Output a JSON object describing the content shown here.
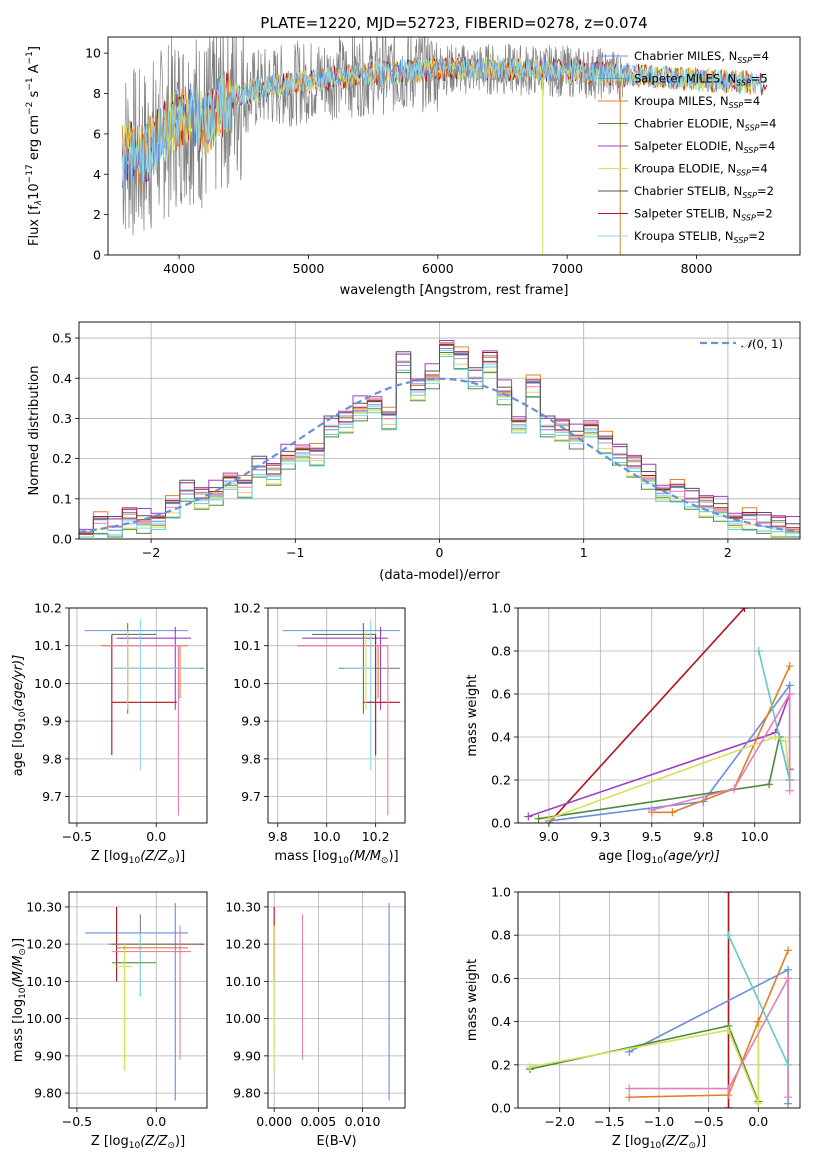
{
  "figure": {
    "colors": {
      "cm": "#6b8fd9",
      "sm": "#4aa8d6",
      "km": "#e0802a",
      "ce": "#4d8a3c",
      "se": "#9b3fbf",
      "ke": "#d7e05a",
      "cs": "#555555",
      "ss": "#b0121b",
      "ks": "#8fd6e3",
      "pink": "#e87fb8",
      "teal": "#63c9c9",
      "gray": "#808080",
      "gauss": "#6b8fd9"
    }
  },
  "chart_data": [
    {
      "id": "spectrum",
      "type": "line",
      "title": "PLATE=1220, MJD=52723, FIBERID=0278, z=0.074",
      "xlabel": "wavelength [Angstrom, rest frame]",
      "ylabel_parts": [
        "Flux [f",
        "λ",
        "10",
        "−17",
        " erg cm",
        "−2",
        " s",
        "−1",
        " A",
        "−1",
        "]"
      ],
      "xlim": [
        3450,
        8800
      ],
      "ylim": [
        0,
        10.8
      ],
      "xticks": [
        4000,
        5000,
        6000,
        7000,
        8000
      ],
      "yticks": [
        0,
        2,
        4,
        6,
        8,
        10
      ],
      "envelope_x": [
        3500,
        3600,
        3700,
        3800,
        3900,
        4000,
        4100,
        4200,
        4300,
        4400,
        4600,
        4800,
        5000,
        5200,
        5500,
        6000,
        6500,
        7000,
        7500,
        8000,
        8500
      ],
      "envelope_y": [
        4.5,
        5.2,
        4.8,
        5.5,
        6.2,
        6.8,
        7.0,
        6.4,
        7.2,
        7.8,
        8.2,
        8.4,
        8.6,
        8.8,
        9.0,
        9.2,
        9.2,
        9.1,
        8.9,
        8.7,
        8.5
      ],
      "legend": [
        {
          "label": "Chabrier MILES, N",
          "sub": "SSP",
          "tail": "=4",
          "color": "cm"
        },
        {
          "label": "Salpeter MILES, N",
          "sub": "SSP",
          "tail": "=5",
          "color": "sm"
        },
        {
          "label": "Kroupa MILES, N",
          "sub": "SSP",
          "tail": "=4",
          "color": "km"
        },
        {
          "label": "Chabrier ELODIE, N",
          "sub": "SSP",
          "tail": "=4",
          "color": "ce"
        },
        {
          "label": "Salpeter ELODIE, N",
          "sub": "SSP",
          "tail": "=4",
          "color": "se"
        },
        {
          "label": "Kroupa ELODIE, N",
          "sub": "SSP",
          "tail": "=4",
          "color": "ke"
        },
        {
          "label": "Chabrier STELIB, N",
          "sub": "SSP",
          "tail": "=2",
          "color": "cs"
        },
        {
          "label": "Salpeter STELIB, N",
          "sub": "SSP",
          "tail": "=2",
          "color": "ss"
        },
        {
          "label": "Kroupa STELIB, N",
          "sub": "SSP",
          "tail": "=2",
          "color": "ks"
        }
      ]
    },
    {
      "id": "residuals",
      "type": "bar",
      "xlabel": "(data-model)/error",
      "ylabel": "Normed distribution",
      "xlim": [
        -2.5,
        2.5
      ],
      "ylim": [
        0,
        0.54
      ],
      "xticks": [
        -2,
        -1,
        0,
        1,
        2
      ],
      "yticks": [
        0.0,
        0.1,
        0.2,
        0.3,
        0.4,
        0.5
      ],
      "legend": {
        "prefix": "𝒩",
        "rest": "(0, 1)"
      },
      "bin_width": 0.1,
      "bins_x": [
        -2.5,
        -2.4,
        -2.3,
        -2.2,
        -2.1,
        -2.0,
        -1.9,
        -1.8,
        -1.7,
        -1.6,
        -1.5,
        -1.4,
        -1.3,
        -1.2,
        -1.1,
        -1.0,
        -0.9,
        -0.8,
        -0.7,
        -0.6,
        -0.5,
        -0.4,
        -0.3,
        -0.2,
        -0.1,
        0.0,
        0.1,
        0.2,
        0.3,
        0.4,
        0.5,
        0.6,
        0.7,
        0.8,
        0.9,
        1.0,
        1.1,
        1.2,
        1.3,
        1.4,
        1.5,
        1.6,
        1.7,
        1.8,
        1.9,
        2.0,
        2.1,
        2.2,
        2.3,
        2.4
      ],
      "hist_y": [
        0.02,
        0.04,
        0.03,
        0.05,
        0.04,
        0.06,
        0.08,
        0.12,
        0.1,
        0.11,
        0.16,
        0.13,
        0.18,
        0.16,
        0.2,
        0.23,
        0.21,
        0.28,
        0.29,
        0.32,
        0.35,
        0.3,
        0.44,
        0.37,
        0.4,
        0.49,
        0.45,
        0.4,
        0.44,
        0.36,
        0.3,
        0.38,
        0.28,
        0.27,
        0.25,
        0.29,
        0.24,
        0.21,
        0.18,
        0.15,
        0.13,
        0.12,
        0.1,
        0.08,
        0.07,
        0.06,
        0.05,
        0.04,
        0.03,
        0.02
      ],
      "offsets": [
        0.0,
        0.012,
        -0.01,
        0.02,
        -0.015,
        0.008,
        -0.005,
        0.015,
        -0.02,
        0.01
      ]
    },
    {
      "id": "age_vs_z",
      "type": "scatter",
      "xlabel": "Z [log",
      "xlabel_sub": "10",
      "xlabel_tail": "(Z/Z",
      "xlabel_sun": "⊙",
      "xlabel_end": ")]",
      "ylabel": "age  [log",
      "ylabel_sub": "10",
      "ylabel_tail": "(age/yr)]",
      "xlim": [
        -0.55,
        0.32
      ],
      "ylim": [
        9.63,
        10.2
      ],
      "xticks": [
        -0.5,
        0.0
      ],
      "yticks": [
        9.7,
        9.8,
        9.9,
        10.0,
        10.1,
        10.2
      ],
      "crosses": [
        {
          "x": -0.1,
          "y": 10.14,
          "xe": [
            -0.45,
            0.2
          ],
          "ye": [
            10.14,
            10.14
          ],
          "color": "cm"
        },
        {
          "x": 0.12,
          "y": 10.12,
          "xe": [
            -0.25,
            0.22
          ],
          "ye": [
            9.93,
            10.15
          ],
          "color": "se"
        },
        {
          "x": -0.18,
          "y": 10.13,
          "xe": [
            -0.28,
            0.0
          ],
          "ye": [
            9.92,
            10.16
          ],
          "color": "ce"
        },
        {
          "x": 0.15,
          "y": 10.1,
          "xe": [
            -0.35,
            0.2
          ],
          "ye": [
            9.96,
            10.1
          ],
          "color": "km"
        },
        {
          "x": 0.0,
          "y": 10.04,
          "xe": [
            -0.27,
            0.3
          ],
          "ye": [
            10.04,
            10.04
          ],
          "color": "gray"
        },
        {
          "x": -0.1,
          "y": 10.04,
          "xe": [
            -0.27,
            0.28
          ],
          "ye": [
            9.77,
            10.17
          ],
          "color": "ks"
        },
        {
          "x": -0.28,
          "y": 9.95,
          "xe": [
            -0.28,
            0.13
          ],
          "ye": [
            9.81,
            10.13
          ],
          "color": "ss"
        },
        {
          "x": 0.14,
          "y": 10.1,
          "xe": [
            -0.3,
            0.18
          ],
          "ye": [
            9.65,
            10.1
          ],
          "color": "pink"
        },
        {
          "x": -0.18,
          "y": 10.1,
          "xe": [
            -0.18,
            -0.18
          ],
          "ye": [
            9.93,
            10.14
          ],
          "color": "ke"
        }
      ]
    },
    {
      "id": "age_vs_mass",
      "type": "scatter",
      "xlabel": "mass [log",
      "xlabel_sub": "10",
      "xlabel_tail": "(M/M",
      "xlabel_sun": "⊙",
      "xlabel_end": ")]",
      "xlim": [
        9.76,
        10.32
      ],
      "ylim": [
        9.63,
        10.2
      ],
      "xticks": [
        9.8,
        10.0,
        10.2
      ],
      "yticks": [
        9.7,
        9.8,
        9.9,
        10.0,
        10.1,
        10.2
      ],
      "crosses": [
        {
          "x": 10.2,
          "y": 10.14,
          "xe": [
            9.82,
            10.3
          ],
          "ye": [
            10.14,
            10.14
          ],
          "color": "cm"
        },
        {
          "x": 10.22,
          "y": 10.12,
          "xe": [
            9.9,
            10.25
          ],
          "ye": [
            9.93,
            10.15
          ],
          "color": "se"
        },
        {
          "x": 10.15,
          "y": 10.13,
          "xe": [
            9.94,
            10.2
          ],
          "ye": [
            9.92,
            10.16
          ],
          "color": "ce"
        },
        {
          "x": 10.21,
          "y": 10.1,
          "xe": [
            9.88,
            10.25
          ],
          "ye": [
            9.96,
            10.1
          ],
          "color": "km"
        },
        {
          "x": 10.12,
          "y": 10.04,
          "xe": [
            10.05,
            10.3
          ],
          "ye": [
            10.04,
            10.04
          ],
          "color": "gray"
        },
        {
          "x": 10.18,
          "y": 10.04,
          "xe": [
            10.07,
            10.2
          ],
          "ye": [
            9.77,
            10.17
          ],
          "color": "ks"
        },
        {
          "x": 10.2,
          "y": 9.95,
          "xe": [
            10.15,
            10.3
          ],
          "ye": [
            9.81,
            10.13
          ],
          "color": "ss"
        },
        {
          "x": 10.25,
          "y": 10.1,
          "xe": [
            9.88,
            10.25
          ],
          "ye": [
            9.65,
            10.1
          ],
          "color": "pink"
        },
        {
          "x": 10.16,
          "y": 10.1,
          "xe": [
            10.16,
            10.16
          ],
          "ye": [
            9.93,
            10.14
          ],
          "color": "ke"
        }
      ]
    },
    {
      "id": "weight_vs_age",
      "type": "line",
      "xlabel": "age  [log",
      "xlabel_sub": "10",
      "xlabel_tail": "(age/yr)]",
      "ylabel": "mass weight",
      "xlim": [
        8.85,
        10.22
      ],
      "ylim": [
        0,
        1
      ],
      "xticks": [
        9.0,
        9.25,
        9.5,
        9.75,
        10.0
      ],
      "yticks": [
        0.0,
        0.2,
        0.4,
        0.6,
        0.8,
        1.0
      ],
      "series": [
        {
          "color": "ss",
          "x": [
            9.0,
            9.95
          ],
          "y": [
            0.0,
            1.0
          ]
        },
        {
          "color": "se",
          "x": [
            8.9,
            10.1,
            10.17,
            10.17
          ],
          "y": [
            0.03,
            0.42,
            0.6,
            0.25
          ]
        },
        {
          "color": "cm",
          "x": [
            9.0,
            9.75,
            10.17,
            10.17
          ],
          "y": [
            0.01,
            0.1,
            0.64,
            0.2
          ]
        },
        {
          "color": "km",
          "x": [
            9.5,
            9.6,
            9.9,
            10.17
          ],
          "y": [
            0.05,
            0.05,
            0.16,
            0.73
          ]
        },
        {
          "color": "ce",
          "x": [
            8.95,
            10.07,
            10.12,
            10.17
          ],
          "y": [
            0.02,
            0.18,
            0.4,
            0.2
          ]
        },
        {
          "color": "ke",
          "x": [
            9.0,
            10.1,
            10.15,
            10.17
          ],
          "y": [
            0.02,
            0.4,
            0.38,
            0.2
          ]
        },
        {
          "color": "teal",
          "x": [
            10.02,
            10.17
          ],
          "y": [
            0.8,
            0.2
          ]
        },
        {
          "color": "pink",
          "x": [
            9.5,
            9.9,
            10.17,
            10.17
          ],
          "y": [
            0.06,
            0.16,
            0.6,
            0.15
          ]
        }
      ]
    },
    {
      "id": "mass_vs_z",
      "type": "scatter",
      "xlabel": "Z [log",
      "xlabel_sub": "10",
      "xlabel_tail": "(Z/Z",
      "xlabel_sun": "⊙",
      "xlabel_end": ")]",
      "ylabel": "mass [log",
      "ylabel_sub": "10",
      "ylabel_tail": "(M/M",
      "ylabel_sun": "⊙",
      "ylabel_end": ")]",
      "xlim": [
        -0.55,
        0.32
      ],
      "ylim": [
        9.76,
        10.34
      ],
      "xticks": [
        -0.5,
        0.0
      ],
      "yticks": [
        9.8,
        9.9,
        10.0,
        10.1,
        10.2,
        10.3
      ],
      "crosses": [
        {
          "x": 0.12,
          "y": 10.23,
          "xe": [
            -0.45,
            0.2
          ],
          "ye": [
            9.78,
            10.31
          ],
          "color": "cm"
        },
        {
          "x": -0.25,
          "y": 10.2,
          "xe": [
            -0.28,
            0.3
          ],
          "ye": [
            10.1,
            10.3
          ],
          "color": "ss"
        },
        {
          "x": -0.1,
          "y": 10.2,
          "xe": [
            -0.3,
            0.28
          ],
          "ye": [
            10.06,
            10.28
          ],
          "color": "gray"
        },
        {
          "x": 0.15,
          "y": 10.18,
          "xe": [
            -0.28,
            0.22
          ],
          "ye": [
            9.89,
            10.25
          ],
          "color": "pink"
        },
        {
          "x": -0.1,
          "y": 10.15,
          "xe": [
            -0.25,
            -0.1
          ],
          "ye": [
            10.06,
            10.23
          ],
          "color": "ks"
        },
        {
          "x": -0.2,
          "y": 10.15,
          "xe": [
            -0.28,
            0.0
          ],
          "ye": [
            9.86,
            10.2
          ],
          "color": "ce"
        },
        {
          "x": -0.2,
          "y": 10.14,
          "xe": [
            -0.25,
            -0.15
          ],
          "ye": [
            9.86,
            10.2
          ],
          "color": "ke"
        },
        {
          "x": 0.0,
          "y": 10.19,
          "xe": [
            -0.25,
            0.2
          ],
          "ye": [
            10.19,
            10.19
          ],
          "color": "km"
        }
      ]
    },
    {
      "id": "mass_vs_ebv",
      "type": "scatter",
      "xlabel": "E(B-V)",
      "xlim": [
        -0.0007,
        0.0148
      ],
      "ylim": [
        9.76,
        10.34
      ],
      "xticks": [
        0.0,
        0.005,
        0.01
      ],
      "xtick_labels": [
        "0.000",
        "0.005",
        "0.010"
      ],
      "yticks": [
        9.8,
        9.9,
        10.0,
        10.1,
        10.2,
        10.3
      ],
      "crosses": [
        {
          "x": 0.013,
          "y": 10.23,
          "xe": [
            0.013,
            0.013
          ],
          "ye": [
            9.78,
            10.31
          ],
          "color": "cm"
        },
        {
          "x": 0.0,
          "y": 10.2,
          "xe": [
            0.0,
            0.0
          ],
          "ye": [
            10.1,
            10.3
          ],
          "color": "ss"
        },
        {
          "x": 0.0,
          "y": 10.15,
          "xe": [
            0.0,
            0.0
          ],
          "ye": [
            9.86,
            10.25
          ],
          "color": "ke"
        },
        {
          "x": 0.0032,
          "y": 10.1,
          "xe": [
            0.0032,
            0.0032
          ],
          "ye": [
            9.89,
            10.28
          ],
          "color": "pink"
        }
      ]
    },
    {
      "id": "weight_vs_z",
      "type": "line",
      "xlabel": "Z [log",
      "xlabel_sub": "10",
      "xlabel_tail": "(Z/Z",
      "xlabel_sun": "⊙",
      "xlabel_end": ")]",
      "ylabel": "mass weight",
      "xlim": [
        -2.42,
        0.42
      ],
      "ylim": [
        0,
        1
      ],
      "xticks": [
        -2.0,
        -1.5,
        -1.0,
        -0.5,
        0.0
      ],
      "xtick_labels": [
        "−2.0",
        "−1.5",
        "−1.0",
        "−0.5",
        "0.0"
      ],
      "yticks": [
        0.0,
        0.2,
        0.4,
        0.6,
        0.8,
        1.0
      ],
      "series": [
        {
          "color": "ss",
          "x": [
            -0.3,
            -0.3
          ],
          "y": [
            0.0,
            1.0
          ]
        },
        {
          "color": "cm",
          "x": [
            -1.3,
            0.3,
            0.3
          ],
          "y": [
            0.26,
            0.64,
            0.02
          ]
        },
        {
          "color": "ce",
          "x": [
            -2.3,
            -0.3,
            0.0,
            0.0
          ],
          "y": [
            0.18,
            0.38,
            0.03,
            0.4
          ]
        },
        {
          "color": "ke",
          "x": [
            -2.3,
            -0.3,
            0.0,
            0.0
          ],
          "y": [
            0.19,
            0.36,
            0.02,
            0.38
          ]
        },
        {
          "color": "km",
          "x": [
            -1.3,
            -0.3,
            0.0,
            0.3
          ],
          "y": [
            0.05,
            0.06,
            0.4,
            0.73
          ]
        },
        {
          "color": "pink",
          "x": [
            -1.3,
            -0.3,
            0.3,
            0.3
          ],
          "y": [
            0.09,
            0.09,
            0.6,
            0.05
          ]
        },
        {
          "color": "teal",
          "x": [
            -0.3,
            0.3
          ],
          "y": [
            0.8,
            0.2
          ]
        }
      ]
    }
  ]
}
